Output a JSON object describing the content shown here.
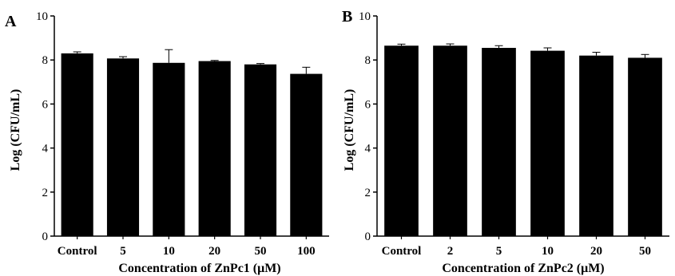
{
  "chart_data": [
    {
      "type": "bar",
      "panel_label": "A",
      "categories": [
        "Control",
        "5",
        "10",
        "20",
        "50",
        "100"
      ],
      "values": [
        8.3,
        8.07,
        7.87,
        7.95,
        7.8,
        7.37
      ],
      "errors": [
        0.07,
        0.08,
        0.6,
        0.03,
        0.04,
        0.3
      ],
      "xlabel": "Concentration of ZnPc1 (μM)",
      "ylabel": "Log (CFU/mL)",
      "ylim": [
        0,
        10
      ],
      "yticks": [
        "0",
        "2",
        "4",
        "6",
        "8",
        "10"
      ],
      "grid": false,
      "bar_color": "#000000"
    },
    {
      "type": "bar",
      "panel_label": "B",
      "categories": [
        "Control",
        "2",
        "5",
        "10",
        "20",
        "50"
      ],
      "values": [
        8.65,
        8.65,
        8.55,
        8.42,
        8.2,
        8.1
      ],
      "errors": [
        0.07,
        0.08,
        0.1,
        0.13,
        0.15,
        0.15
      ],
      "xlabel": "Concentration of ZnPc2 (μM)",
      "ylabel": "Log (CFU/mL)",
      "ylim": [
        0,
        10
      ],
      "yticks": [
        "0",
        "2",
        "4",
        "6",
        "8",
        "10"
      ],
      "grid": false,
      "bar_color": "#000000"
    }
  ]
}
